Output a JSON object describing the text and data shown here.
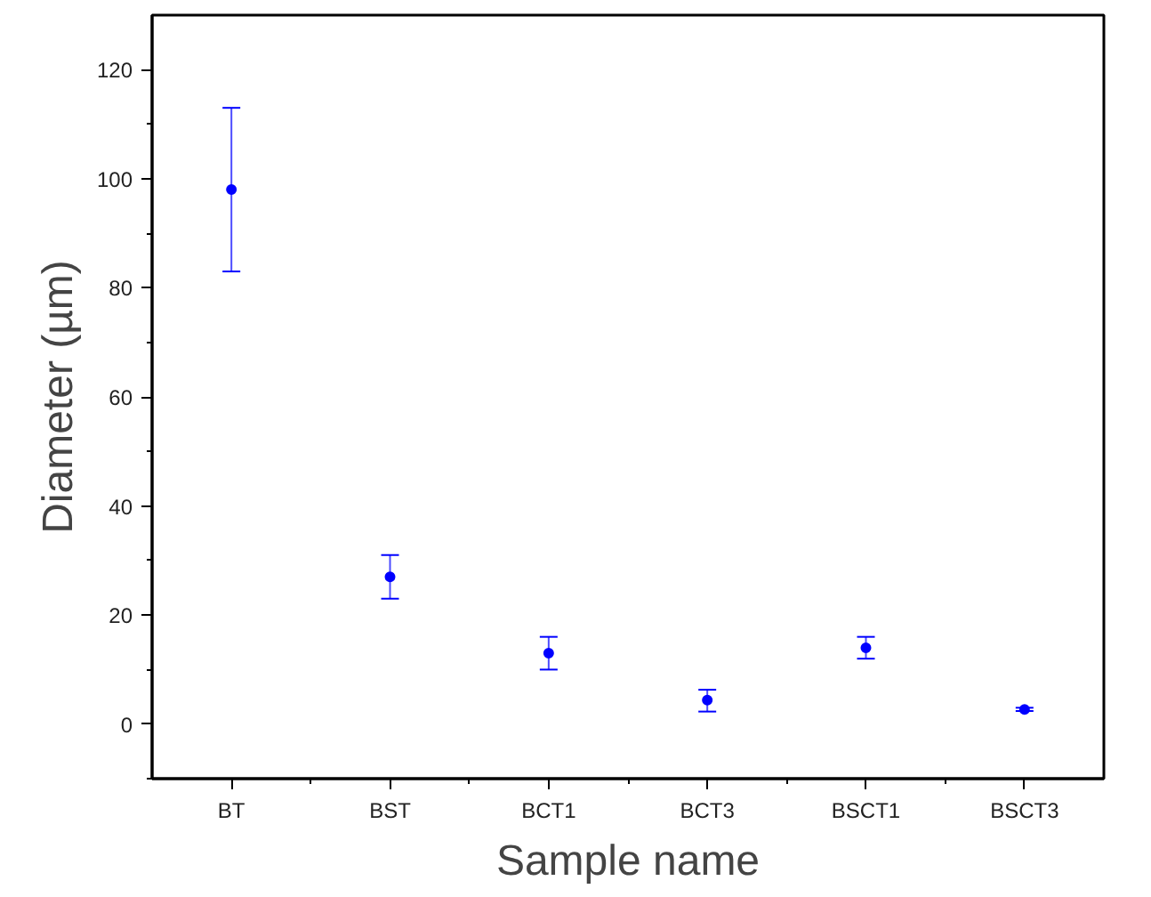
{
  "chart_data": {
    "type": "scatter",
    "xlabel": "Sample name",
    "ylabel": "Diameter (µm)",
    "categories": [
      "BT",
      "BST",
      "BCT1",
      "BCT3",
      "BSCT1",
      "BSCT3"
    ],
    "series": [
      {
        "color": "#0000ff",
        "values": [
          98,
          27,
          13,
          4.4,
          14,
          2.7
        ],
        "errors": [
          [
            83,
            113
          ],
          [
            23,
            31
          ],
          [
            10,
            16
          ],
          [
            2.3,
            6.3
          ],
          [
            12,
            16
          ],
          [
            2.4,
            3.0
          ]
        ]
      }
    ],
    "ylim": [
      -10,
      130
    ],
    "yticks": [
      0,
      20,
      40,
      60,
      80,
      100,
      120
    ],
    "grid": false,
    "marker": "circle"
  }
}
